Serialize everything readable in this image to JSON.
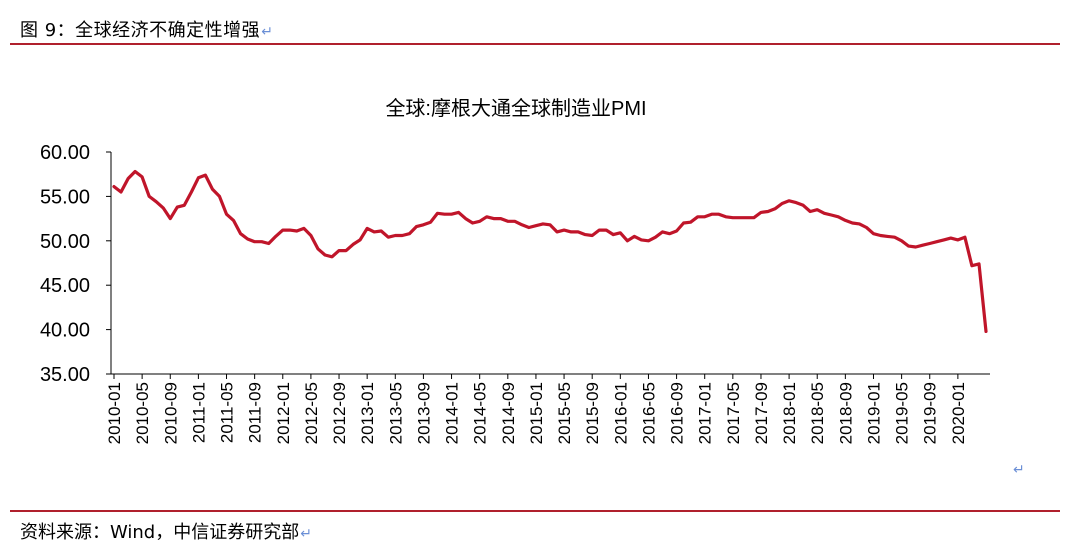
{
  "figure": {
    "caption": "图 9：全球经济不确定性增强",
    "source": "资料来源：Wind，中信证券研究部",
    "return_mark": "↵",
    "rule_color": "#b0202d"
  },
  "chart_data": {
    "type": "line",
    "title": "全球:摩根大通全球制造业PMI",
    "xlabel": "",
    "ylabel": "",
    "ylim": [
      35,
      60
    ],
    "yticks": [
      "35.00",
      "40.00",
      "45.00",
      "50.00",
      "55.00",
      "60.00"
    ],
    "grid": false,
    "legend": "none",
    "line_color": "#c0152a",
    "xticks": [
      "2010-01",
      "2010-05",
      "2010-09",
      "2011-01",
      "2011-05",
      "2011-09",
      "2012-01",
      "2012-05",
      "2012-09",
      "2013-01",
      "2013-05",
      "2013-09",
      "2014-01",
      "2014-05",
      "2014-09",
      "2015-01",
      "2015-05",
      "2015-09",
      "2016-01",
      "2016-05",
      "2016-09",
      "2017-01",
      "2017-05",
      "2017-09",
      "2018-01",
      "2018-05",
      "2018-09",
      "2019-01",
      "2019-05",
      "2019-09",
      "2020-01"
    ],
    "series": [
      {
        "start": "2010-01",
        "values": [
          56.1,
          55.5,
          57.0,
          57.8,
          57.2,
          55.0,
          54.4,
          53.7,
          52.5,
          53.8,
          54.0,
          55.5,
          57.1,
          57.4,
          55.8,
          55.0,
          53.0,
          52.3,
          50.8,
          50.2,
          49.9,
          49.9,
          49.7,
          50.5,
          51.2,
          51.2,
          51.1,
          51.4,
          50.6,
          49.1,
          48.4,
          48.2,
          48.9,
          48.9,
          49.6,
          50.1,
          51.4,
          51.0,
          51.1,
          50.4,
          50.6,
          50.6,
          50.8,
          51.6,
          51.8,
          52.1,
          53.1,
          53.0,
          53.0,
          53.2,
          52.5,
          52.0,
          52.2,
          52.7,
          52.5,
          52.5,
          52.2,
          52.2,
          51.8,
          51.5,
          51.7,
          51.9,
          51.8,
          51.0,
          51.2,
          51.0,
          51.0,
          50.7,
          50.6,
          51.2,
          51.2,
          50.7,
          50.9,
          50.0,
          50.5,
          50.1,
          50.0,
          50.4,
          51.0,
          50.8,
          51.1,
          52.0,
          52.1,
          52.7,
          52.7,
          53.0,
          53.0,
          52.7,
          52.6,
          52.6,
          52.6,
          52.6,
          53.2,
          53.3,
          53.6,
          54.2,
          54.5,
          54.3,
          54.0,
          53.3,
          53.5,
          53.1,
          52.9,
          52.7,
          52.3,
          52.0,
          51.9,
          51.5,
          50.8,
          50.6,
          50.5,
          50.4,
          50.0,
          49.4,
          49.3,
          49.5,
          49.7,
          49.9,
          50.1,
          50.3,
          50.1,
          50.4,
          47.2,
          47.4,
          39.8
        ]
      }
    ]
  }
}
